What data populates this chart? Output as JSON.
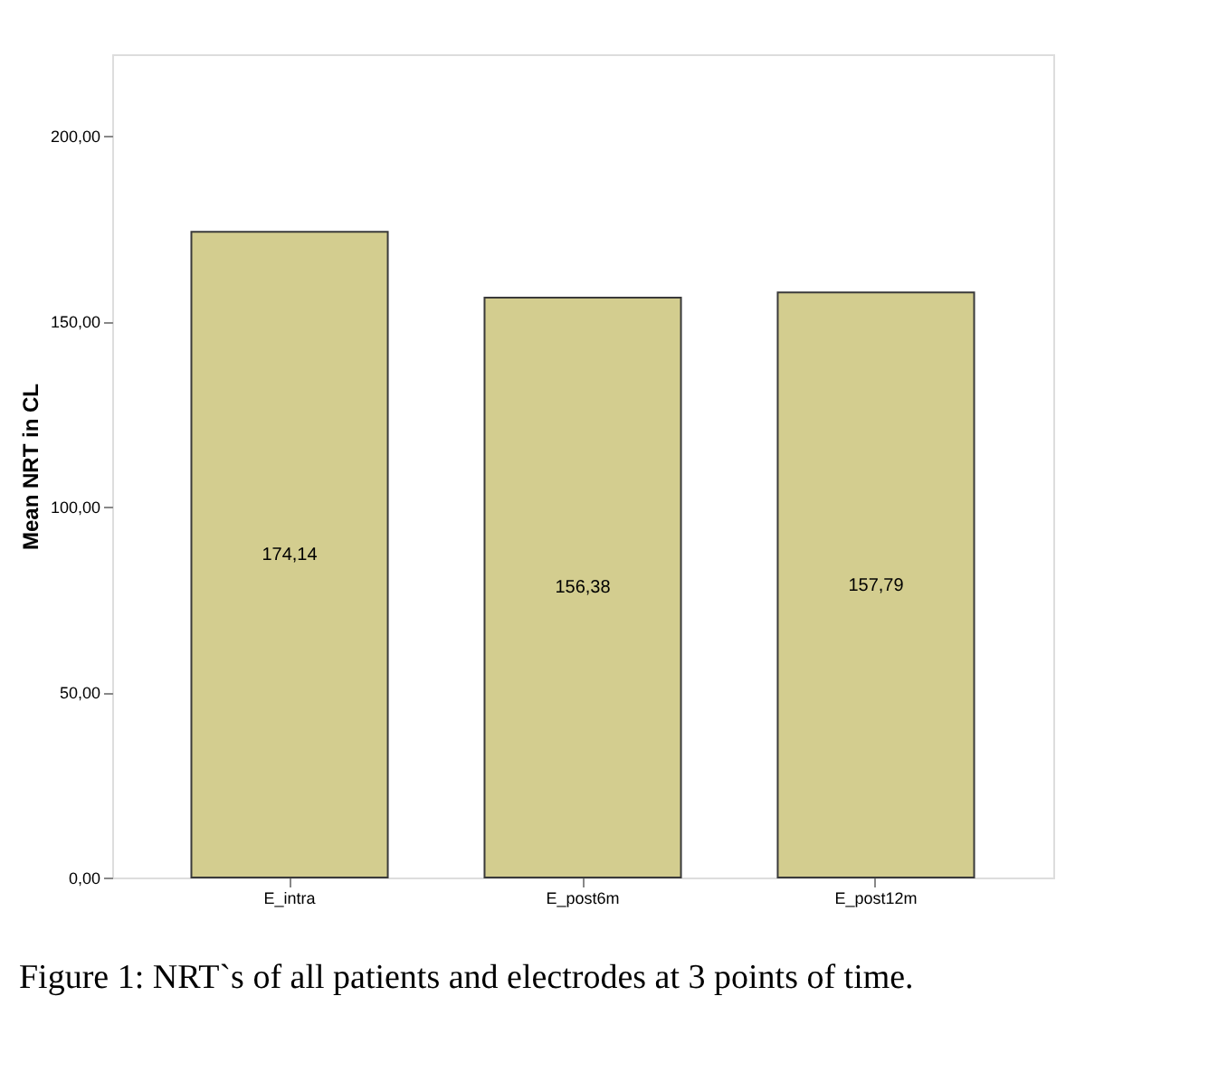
{
  "chart_data": {
    "type": "bar",
    "ylabel": "Mean NRT in CL",
    "categories": [
      "E_intra",
      "E_post6m",
      "E_post12m"
    ],
    "values": [
      174.14,
      156.38,
      157.79
    ],
    "value_labels": [
      "174,14",
      "156,38",
      "157,79"
    ],
    "color": "#d3cd8f",
    "ylim": [
      0,
      222
    ],
    "yticks": [
      {
        "value": 0,
        "label": "0,00"
      },
      {
        "value": 50,
        "label": "50,00"
      },
      {
        "value": 100,
        "label": "100,00"
      },
      {
        "value": 150,
        "label": "150,00"
      },
      {
        "value": 200,
        "label": "200,00"
      }
    ],
    "grid": false,
    "annotations": [
      "Figure 1: NRT`s of all patients and electrodes at 3 points of time."
    ]
  }
}
